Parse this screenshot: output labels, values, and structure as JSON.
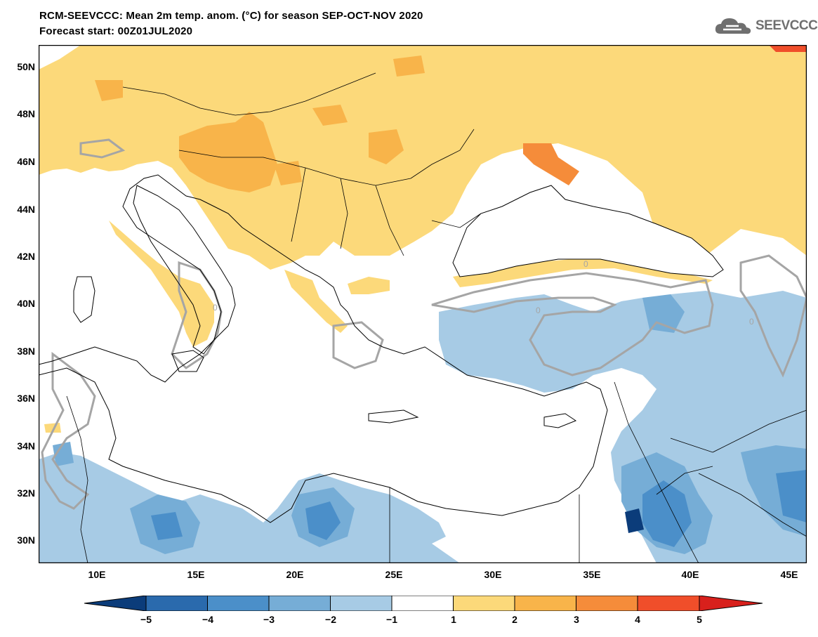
{
  "header": {
    "title": "RCM-SEEVCCC: Mean 2m temp. anom. (°C) for season SEP-OCT-NOV 2020",
    "subtitle": "Forecast start: 00Z01JUL2020",
    "logo_text": "SEEVCCC"
  },
  "map": {
    "lat_labels": [
      "50N",
      "48N",
      "46N",
      "44N",
      "42N",
      "40N",
      "38N",
      "36N",
      "34N",
      "32N",
      "30N"
    ],
    "lon_labels": [
      "10E",
      "15E",
      "20E",
      "25E",
      "30E",
      "35E",
      "40E",
      "45E"
    ],
    "contour_label": "0"
  },
  "colorbar": {
    "ticks": [
      "−5",
      "−4",
      "−3",
      "−2",
      "−1",
      "1",
      "2",
      "3",
      "4",
      "5"
    ],
    "colors": [
      "#0b3c7a",
      "#2a6aad",
      "#4b8fc9",
      "#76add6",
      "#a7cbe5",
      "#ffffff",
      "#fcd97a",
      "#f8b44a",
      "#f58c3a",
      "#f04e2a",
      "#d8201c"
    ]
  }
}
